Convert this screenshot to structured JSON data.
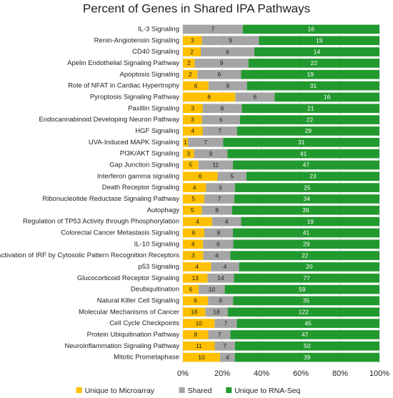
{
  "chart_data": {
    "type": "bar",
    "orientation": "horizontal",
    "stacking": "percent",
    "title": "Percent of Genes in Shared IPA Pathways",
    "categories": [
      "IL-3 Signaling",
      "Renin-Angiotensin Signaling",
      "CD40 Signaling",
      "Apelin Endothelial Signaling Pathway",
      "Apoptosis Signaling",
      "Role of NFAT in Cardiac Hypertrophy",
      "Pyroptosis Signaling Pathway",
      "Paxillin Signaling",
      "Endocannabinoid Developing Neuron Pathway",
      "HGF Signaling",
      "UVA-Induced MAPK Signaling",
      "PI3K/AKT Signaling",
      "Gap Junction Signaling",
      "Interferon gamma signaling",
      "Death Receptor Signaling",
      "Ribonucleotide Reductase Signaling Pathway",
      "Autophagy",
      "Regulation of TP53 Activity through Phosphorylation",
      "Colorectal Cancer Metastasis Signaling",
      "IL-10 Signaling",
      "Activation of IRF by Cytosolic Pattern Recognition Receptors",
      "p53 Signaling",
      "Glucocorticoid Receptor Signaling",
      "Deubiquitination",
      "Natural Killer Cell Signaling",
      "Molecular Mechanisms of Cancer",
      "Cell Cycle Checkpoints",
      "Protein Ubiquitination Pathway",
      "Neuroinflammation Signaling Pathway",
      "Mitotic Prometaphase"
    ],
    "series": [
      {
        "name": "Unique to Microarray",
        "color": "#ffc000",
        "values": [
          null,
          3,
          2,
          2,
          2,
          6,
          8,
          3,
          3,
          4,
          1,
          3,
          5,
          6,
          4,
          5,
          5,
          4,
          6,
          4,
          3,
          4,
          13,
          6,
          6,
          18,
          10,
          8,
          11,
          10
        ]
      },
      {
        "name": "Shared",
        "color": "#a5a5a5",
        "values": [
          7,
          9,
          6,
          9,
          6,
          9,
          6,
          6,
          6,
          7,
          7,
          9,
          11,
          5,
          5,
          7,
          8,
          4,
          8,
          6,
          4,
          4,
          14,
          10,
          6,
          18,
          7,
          7,
          7,
          4
        ]
      },
      {
        "name": "Unique to RNA-Seq",
        "color": "#22992e",
        "values": [
          16,
          19,
          14,
          22,
          19,
          31,
          16,
          21,
          22,
          29,
          31,
          41,
          47,
          23,
          25,
          34,
          39,
          19,
          41,
          29,
          22,
          20,
          77,
          59,
          35,
          122,
          45,
          47,
          50,
          39
        ]
      }
    ],
    "xlim": [
      0,
      100
    ],
    "xticks": [
      {
        "value": 0,
        "label": "0%"
      },
      {
        "value": 20,
        "label": "20%"
      },
      {
        "value": 40,
        "label": "40%"
      },
      {
        "value": 60,
        "label": "60%"
      },
      {
        "value": 80,
        "label": "80%"
      },
      {
        "value": 100,
        "label": "100%"
      }
    ],
    "grid": true,
    "legend": "bottom"
  }
}
